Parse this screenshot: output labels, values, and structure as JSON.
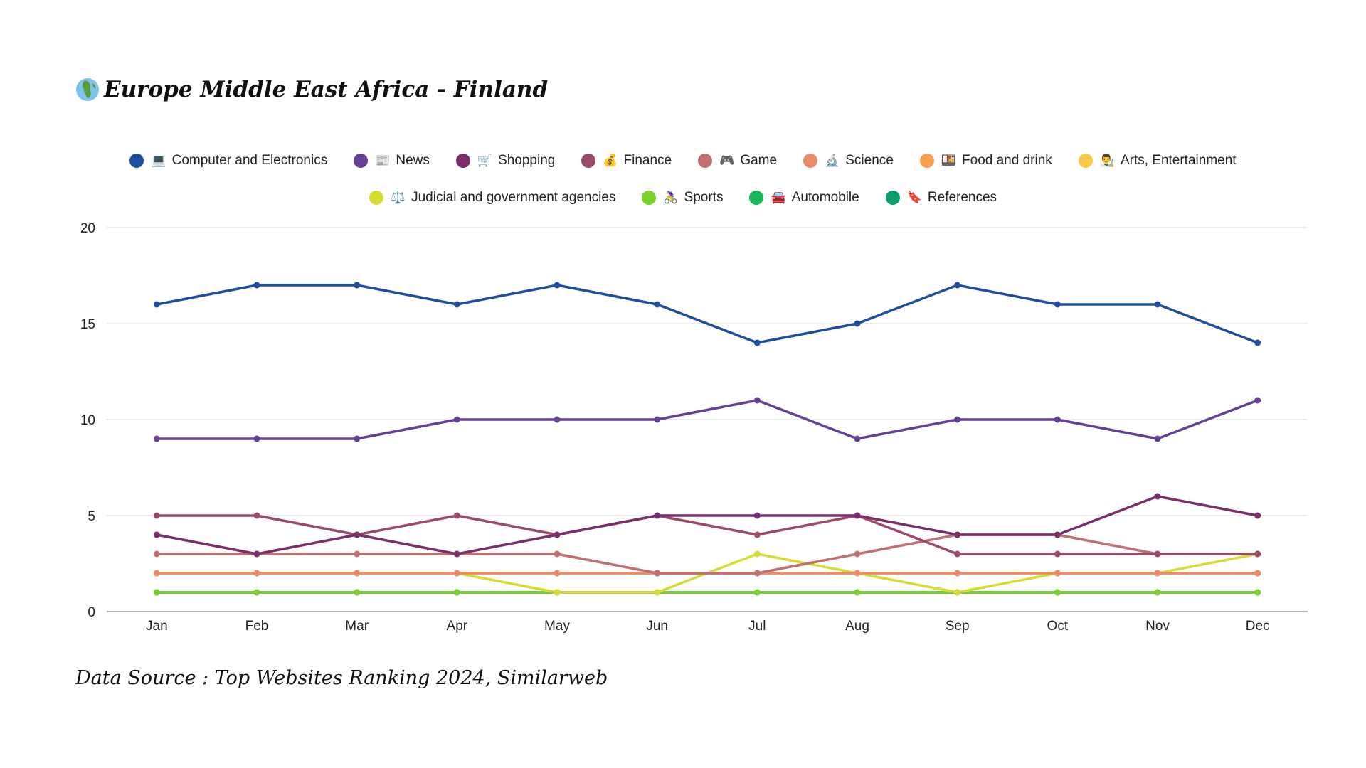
{
  "header": {
    "globe_icon": "globe-africa-icon",
    "title": "Europe Middle East Africa - Finland"
  },
  "source": "Data Source : Top Websites Ranking 2024, Similarweb",
  "chart_data": {
    "type": "line",
    "title": "Europe Middle East Africa - Finland",
    "xlabel": "",
    "ylabel": "",
    "ylim": [
      0,
      20
    ],
    "yticks": [
      0,
      5,
      10,
      15,
      20
    ],
    "grid": true,
    "legend_position": "top-center",
    "categories": [
      "Jan",
      "Feb",
      "Mar",
      "Apr",
      "May",
      "Jun",
      "Jul",
      "Aug",
      "Sep",
      "Oct",
      "Nov",
      "Dec"
    ],
    "series": [
      {
        "name": "Computer and Electronics",
        "emoji": "💻",
        "color": "#1f4e9e",
        "values": [
          16,
          17,
          17,
          16,
          17,
          16,
          14,
          15,
          17,
          16,
          16,
          14
        ]
      },
      {
        "name": "News",
        "emoji": "📰",
        "color": "#663f96",
        "values": [
          9,
          9,
          9,
          10,
          10,
          10,
          11,
          9,
          10,
          10,
          9,
          11
        ]
      },
      {
        "name": "Shopping",
        "emoji": "🛒",
        "color": "#7a2f6a",
        "values": [
          4,
          3,
          4,
          3,
          4,
          5,
          5,
          5,
          4,
          4,
          6,
          5
        ]
      },
      {
        "name": "Finance",
        "emoji": "💰",
        "color": "#9c4a6a",
        "values": [
          5,
          5,
          4,
          5,
          4,
          5,
          4,
          5,
          3,
          3,
          3,
          3
        ]
      },
      {
        "name": "Game",
        "emoji": "🎮",
        "color": "#c07070",
        "values": [
          3,
          3,
          3,
          3,
          3,
          2,
          2,
          3,
          4,
          4,
          3,
          3
        ]
      },
      {
        "name": "Science",
        "emoji": "🔬",
        "color": "#e88c6c",
        "values": [
          2,
          2,
          2,
          2,
          2,
          2,
          2,
          2,
          2,
          2,
          2,
          2
        ]
      },
      {
        "name": "Food and drink",
        "emoji": "🍱",
        "color": "#f5a04f",
        "values": [
          2,
          2,
          2,
          2,
          2,
          2,
          2,
          2,
          2,
          2,
          2,
          2
        ]
      },
      {
        "name": "Arts, Entertainment",
        "emoji": "👨‍🎨",
        "color": "#f9c84a",
        "values": [
          2,
          2,
          2,
          2,
          2,
          2,
          2,
          2,
          2,
          2,
          2,
          2
        ]
      },
      {
        "name": "Judicial and government agencies",
        "emoji": "⚖️",
        "color": "#d7dc33",
        "values": [
          2,
          2,
          2,
          2,
          1,
          1,
          3,
          2,
          1,
          2,
          2,
          3
        ]
      },
      {
        "name": "Sports",
        "emoji": "🚴‍♀️",
        "color": "#7ccf2c",
        "values": [
          1,
          1,
          1,
          1,
          1,
          1,
          1,
          1,
          1,
          1,
          1,
          1
        ]
      },
      {
        "name": "Automobile",
        "emoji": "🚘",
        "color": "#19b65a",
        "values": [
          1,
          1,
          1,
          1,
          1,
          1,
          1,
          1,
          1,
          1,
          1,
          1
        ]
      },
      {
        "name": "References",
        "emoji": "🔖",
        "color": "#0b9e6e",
        "values": [
          1,
          1,
          1,
          1,
          1,
          1,
          1,
          1,
          1,
          1,
          1,
          1
        ]
      }
    ]
  }
}
